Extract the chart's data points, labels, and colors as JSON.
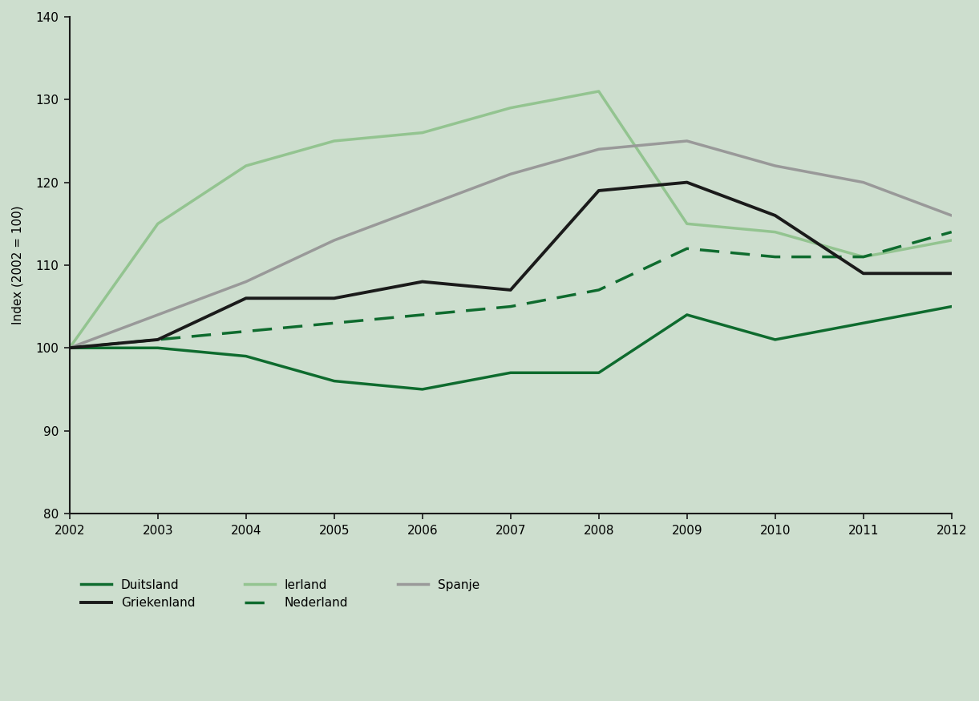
{
  "years": [
    2002,
    2003,
    2004,
    2005,
    2006,
    2007,
    2008,
    2009,
    2010,
    2011,
    2012
  ],
  "duitsland": [
    100,
    100,
    99,
    96,
    95,
    97,
    97,
    104,
    101,
    103,
    105
  ],
  "nederland": [
    100,
    101,
    102,
    103,
    104,
    105,
    107,
    112,
    111,
    111,
    114
  ],
  "griekenland": [
    100,
    101,
    106,
    106,
    108,
    107,
    119,
    120,
    116,
    109,
    109
  ],
  "spanje": [
    100,
    104,
    108,
    113,
    117,
    121,
    124,
    125,
    122,
    120,
    116
  ],
  "ierland": [
    100,
    115,
    122,
    125,
    126,
    129,
    131,
    115,
    114,
    111,
    113
  ],
  "colors": {
    "duitsland": "#0e6b2e",
    "nederland": "#0e6b2e",
    "griekenland": "#1a1a1a",
    "spanje": "#999999",
    "ierland": "#93c490"
  },
  "background_color": "#cddece",
  "plot_bg_color": "#cddece",
  "ylabel": "Index (2002 = 100)",
  "ylim": [
    80,
    140
  ],
  "yticks": [
    80,
    90,
    100,
    110,
    120,
    130,
    140
  ],
  "xlim": [
    2002,
    2012
  ],
  "legend": {
    "duitsland": "Duitsland",
    "nederland": "Nederland",
    "griekenland": "Griekenland",
    "spanje": "Spanje",
    "ierland": "Ierland"
  },
  "spine_color": "#1a1a1a",
  "tick_color": "#1a1a1a",
  "fontsize_ticks": 11,
  "fontsize_ylabel": 11,
  "fontsize_legend": 11,
  "linewidth": 2.0
}
